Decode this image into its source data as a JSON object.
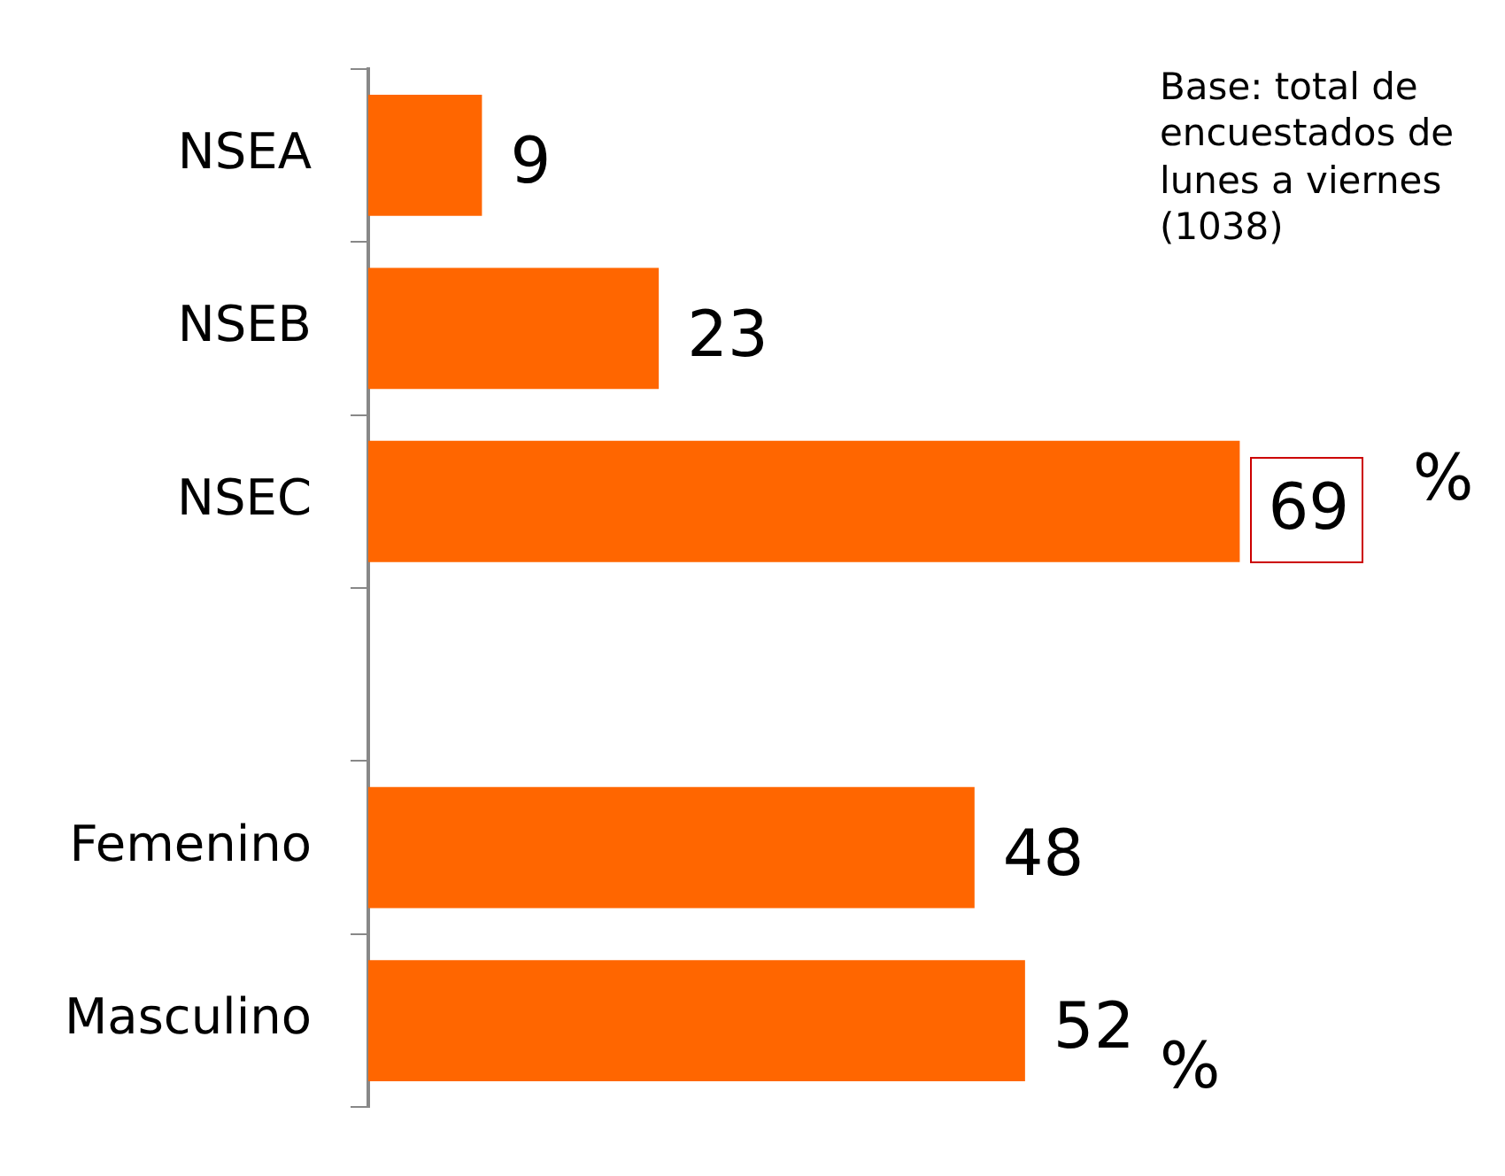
{
  "chart_data": {
    "type": "bar",
    "orientation": "horizontal",
    "categories": [
      "NSEA",
      "NSEB",
      "NSEC",
      null,
      "Femenino",
      "Masculino"
    ],
    "values": [
      9,
      23,
      69,
      null,
      48,
      52
    ],
    "color": "#ff6600",
    "data_labels": true,
    "annotations": [
      "Base: total de encuestados de lunes a viernes (1038)",
      "%",
      "%"
    ]
  }
}
